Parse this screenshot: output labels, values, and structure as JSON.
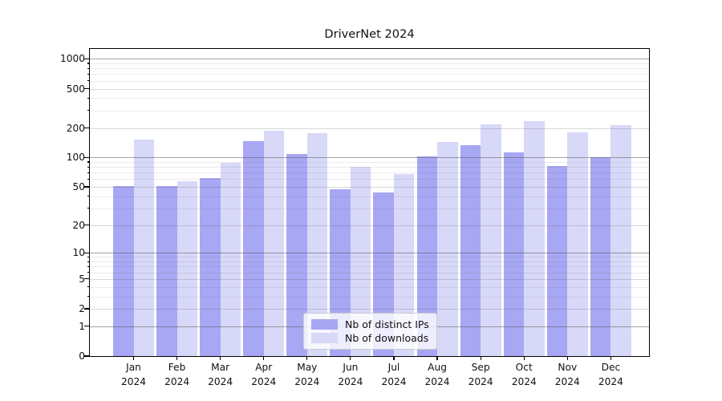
{
  "title": "DriverNet 2024",
  "chart_data": {
    "type": "bar",
    "categories": [
      "Jan",
      "Feb",
      "Mar",
      "Apr",
      "May",
      "Jun",
      "Jul",
      "Aug",
      "Sep",
      "Oct",
      "Nov",
      "Dec"
    ],
    "category_year": "2024",
    "series": [
      {
        "name": "Nb of distinct IPs",
        "color": "#a7a7f4",
        "values": [
          51,
          51,
          62,
          147,
          109,
          47,
          44,
          103,
          134,
          113,
          82,
          101
        ]
      },
      {
        "name": "Nb of downloads",
        "color": "#d8d8f8",
        "values": [
          153,
          57,
          89,
          189,
          178,
          80,
          68,
          145,
          216,
          235,
          180,
          215
        ]
      }
    ],
    "yscale": "log1p",
    "ylim": [
      0,
      1260
    ],
    "y_ticks": [
      0,
      1,
      2,
      5,
      10,
      20,
      50,
      100,
      200,
      500,
      1000
    ],
    "y_major_ticks": [
      1,
      10,
      100,
      1000
    ],
    "grid": true,
    "legend": {
      "position": "lower center (inside)"
    }
  }
}
